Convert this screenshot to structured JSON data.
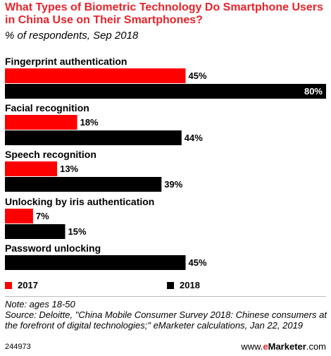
{
  "title": "What Types of Biometric Technology Do Smartphone Users in China Use on Their Smartphones?",
  "subtitle": "% of respondents, Sep 2018",
  "chart_data": {
    "type": "bar",
    "orientation": "horizontal",
    "categories": [
      "Fingerprint authentication",
      "Facial recognition",
      "Speech recognition",
      "Unlocking by iris authentication",
      "Password unlocking"
    ],
    "series": [
      {
        "name": "2017",
        "values": [
          45,
          18,
          13,
          7,
          null
        ],
        "color": "#ff0000"
      },
      {
        "name": "2018",
        "values": [
          80,
          44,
          39,
          15,
          45
        ],
        "color": "#000000"
      }
    ],
    "value_suffix": "%",
    "xlim": [
      0,
      80
    ],
    "grid": false,
    "legend_position": "bottom"
  },
  "legend": {
    "label_2017": "2017",
    "label_2018": "2018"
  },
  "footer": {
    "note": "Note: ages 18-50",
    "source": "Source: Deloitte, \"China Mobile Consumer Survey 2018: Chinese consumers at the forefront of digital technologies;\" eMarketer calculations, Jan 22, 2019",
    "chart_id": "244973",
    "brand_prefix": "www.",
    "brand_mid": "e",
    "brand_suffix": "Marketer",
    "brand_tail": ".com"
  }
}
